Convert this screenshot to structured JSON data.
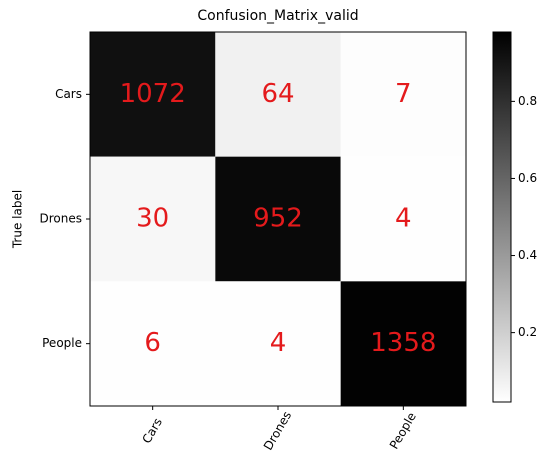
{
  "chart_data": {
    "type": "heatmap",
    "title": "Confusion_Matrix_valid",
    "y_label": "True label",
    "rows": [
      "Cars",
      "Drones",
      "People"
    ],
    "columns": [
      "Cars",
      "Drones",
      "People"
    ],
    "values": [
      [
        1072,
        64,
        7
      ],
      [
        30,
        952,
        4
      ],
      [
        6,
        4,
        1358
      ]
    ],
    "colormap": "Greys",
    "text_color": "#e41a1c",
    "colorbar": {
      "lim": [
        0.02,
        0.98
      ],
      "ticks": [
        0.2,
        0.4,
        0.6,
        0.8
      ]
    }
  }
}
